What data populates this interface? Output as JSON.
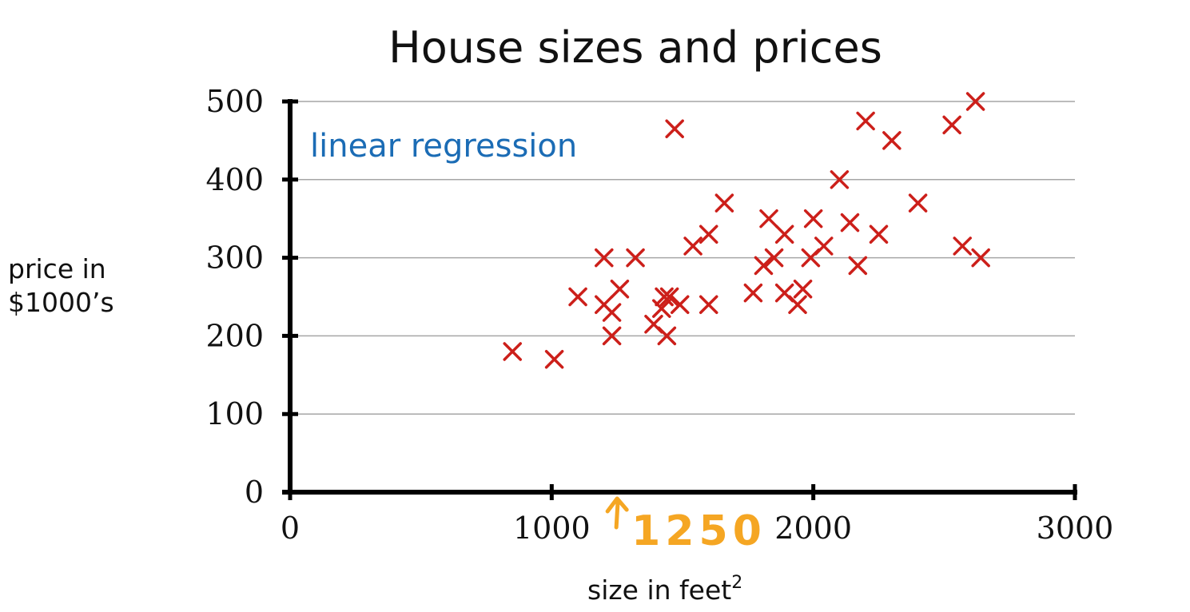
{
  "chart_data": {
    "type": "scatter",
    "title": "House sizes and prices",
    "xlabel": "size in feet",
    "xlabel_sup": "2",
    "ylabel_lines": [
      "price in",
      "$1000’s"
    ],
    "xlim": [
      0,
      3000
    ],
    "ylim": [
      0,
      500
    ],
    "xticks": [
      0,
      1000,
      2000,
      3000
    ],
    "yticks": [
      0,
      100,
      200,
      300,
      400,
      500
    ],
    "grid": true,
    "marker": "x",
    "marker_color": "#cc1f1a",
    "annotation": {
      "text": "linear regression",
      "color": "#1b6cb5"
    },
    "handwritten": {
      "text": "1250",
      "x": 1250,
      "color": "#f5a623"
    },
    "points": [
      {
        "x": 850,
        "y": 180
      },
      {
        "x": 1010,
        "y": 170
      },
      {
        "x": 1100,
        "y": 250
      },
      {
        "x": 1200,
        "y": 300
      },
      {
        "x": 1200,
        "y": 240
      },
      {
        "x": 1230,
        "y": 230
      },
      {
        "x": 1230,
        "y": 200
      },
      {
        "x": 1260,
        "y": 260
      },
      {
        "x": 1320,
        "y": 300
      },
      {
        "x": 1390,
        "y": 215
      },
      {
        "x": 1420,
        "y": 235
      },
      {
        "x": 1430,
        "y": 250
      },
      {
        "x": 1440,
        "y": 200
      },
      {
        "x": 1450,
        "y": 250
      },
      {
        "x": 1470,
        "y": 465
      },
      {
        "x": 1490,
        "y": 240
      },
      {
        "x": 1540,
        "y": 315
      },
      {
        "x": 1600,
        "y": 330
      },
      {
        "x": 1600,
        "y": 240
      },
      {
        "x": 1660,
        "y": 370
      },
      {
        "x": 1770,
        "y": 255
      },
      {
        "x": 1810,
        "y": 290
      },
      {
        "x": 1830,
        "y": 350
      },
      {
        "x": 1850,
        "y": 300
      },
      {
        "x": 1890,
        "y": 330
      },
      {
        "x": 1890,
        "y": 255
      },
      {
        "x": 1940,
        "y": 240
      },
      {
        "x": 1960,
        "y": 260
      },
      {
        "x": 1990,
        "y": 300
      },
      {
        "x": 2000,
        "y": 350
      },
      {
        "x": 2040,
        "y": 315
      },
      {
        "x": 2100,
        "y": 400
      },
      {
        "x": 2140,
        "y": 345
      },
      {
        "x": 2170,
        "y": 290
      },
      {
        "x": 2200,
        "y": 475
      },
      {
        "x": 2250,
        "y": 330
      },
      {
        "x": 2300,
        "y": 450
      },
      {
        "x": 2400,
        "y": 370
      },
      {
        "x": 2530,
        "y": 470
      },
      {
        "x": 2570,
        "y": 315
      },
      {
        "x": 2620,
        "y": 500
      },
      {
        "x": 2640,
        "y": 300
      }
    ]
  }
}
